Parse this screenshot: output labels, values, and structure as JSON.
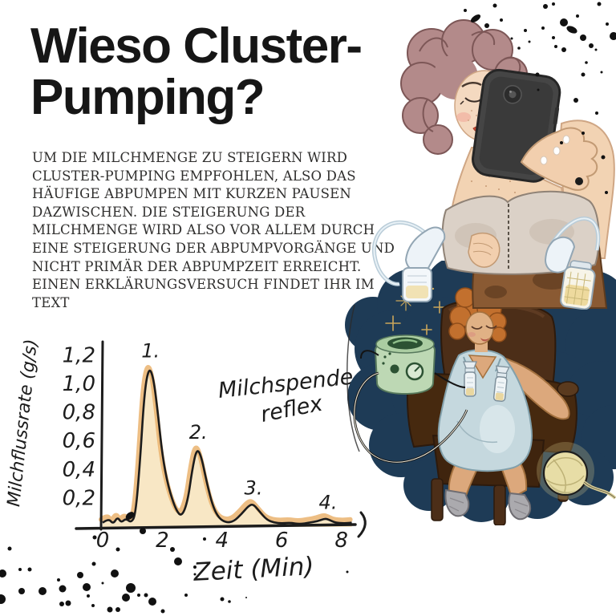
{
  "page": {
    "title_line1": "Wieso Cluster-",
    "title_line2": "Pumping?",
    "body_text": "UM DIE MILCHMENGE ZU STEIGERN WIRD\nCLUSTER-PUMPING EMPFOHLEN, ALSO DAS\nHÄUFIGE ABPUMPEN MIT KURZEN PAUSEN\nDAZWISCHEN. DIE STEIGERUNG DER\nMILCHMENGE WIRD ALSO VOR ALLEM DURCH\nEINE STEIGERUNG DER ABPUMPVORGÄNGE UND\nNICHT PRIMÄR DER ABPUMPZEIT ERREICHT.\nEINEN ERKLÄRUNGSVERSUCH FINDET IHR IM\nTEXT"
  },
  "colors": {
    "ink": "#1c1c1c",
    "title_ink": "#161616",
    "curve_fill": "#f8e7c5",
    "curve_highlight": "#eab36f",
    "navy_blob": "#1e3b56",
    "hair_mauve": "#b38a8a",
    "hair_ginger": "#c2702e",
    "pump_mint": "#bdd8b4",
    "chair_brown": "#4c2e18",
    "yarn_yellow": "#e7dda6"
  },
  "chart_data": {
    "type": "line",
    "title": "",
    "xlabel": "Zeit (Min)",
    "ylabel": "Milchflussrate (g/s)",
    "annotation_line1": "Milchspende-",
    "annotation_line2": "reflex",
    "xlim": [
      0,
      8.6
    ],
    "ylim": [
      0,
      1.3
    ],
    "grid": false,
    "legend": "none",
    "x_ticks": [
      {
        "label": "0",
        "v": 0
      },
      {
        "label": "2",
        "v": 2
      },
      {
        "label": "4",
        "v": 4
      },
      {
        "label": "6",
        "v": 6
      },
      {
        "label": "8",
        "v": 8
      }
    ],
    "y_ticks": [
      {
        "label": "1,2",
        "v": 1.2
      },
      {
        "label": "1,0",
        "v": 1.0
      },
      {
        "label": "0,8",
        "v": 0.8
      },
      {
        "label": "0,6",
        "v": 0.6
      },
      {
        "label": "0,4",
        "v": 0.4
      },
      {
        "label": "0,2",
        "v": 0.2
      }
    ],
    "peaks": [
      {
        "label": "1.",
        "x": 1.55,
        "y": 1.12
      },
      {
        "label": "2.",
        "x": 3.15,
        "y": 0.55
      },
      {
        "label": "3.",
        "x": 5.0,
        "y": 0.16
      },
      {
        "label": "4.",
        "x": 7.5,
        "y": 0.06
      }
    ],
    "curve": [
      [
        0,
        0.03
      ],
      [
        0.2,
        0.06
      ],
      [
        0.35,
        0.02
      ],
      [
        0.5,
        0.07
      ],
      [
        0.62,
        0.03
      ],
      [
        0.78,
        0.06
      ],
      [
        0.95,
        0.03
      ],
      [
        1.1,
        0.08
      ],
      [
        1.25,
        0.45
      ],
      [
        1.4,
        0.95
      ],
      [
        1.55,
        1.12
      ],
      [
        1.7,
        1.05
      ],
      [
        1.85,
        0.8
      ],
      [
        2.0,
        0.5
      ],
      [
        2.2,
        0.28
      ],
      [
        2.45,
        0.12
      ],
      [
        2.65,
        0.07
      ],
      [
        2.85,
        0.18
      ],
      [
        3.0,
        0.4
      ],
      [
        3.15,
        0.55
      ],
      [
        3.3,
        0.5
      ],
      [
        3.5,
        0.3
      ],
      [
        3.7,
        0.14
      ],
      [
        3.9,
        0.06
      ],
      [
        4.15,
        0.03
      ],
      [
        4.4,
        0.04
      ],
      [
        4.65,
        0.09
      ],
      [
        4.9,
        0.15
      ],
      [
        5.05,
        0.16
      ],
      [
        5.25,
        0.11
      ],
      [
        5.5,
        0.05
      ],
      [
        5.75,
        0.03
      ],
      [
        6.0,
        0.025
      ],
      [
        6.3,
        0.03
      ],
      [
        6.6,
        0.02
      ],
      [
        6.9,
        0.03
      ],
      [
        7.2,
        0.04
      ],
      [
        7.45,
        0.06
      ],
      [
        7.6,
        0.05
      ],
      [
        7.8,
        0.03
      ],
      [
        8.1,
        0.025
      ],
      [
        8.35,
        0.03
      ]
    ]
  }
}
